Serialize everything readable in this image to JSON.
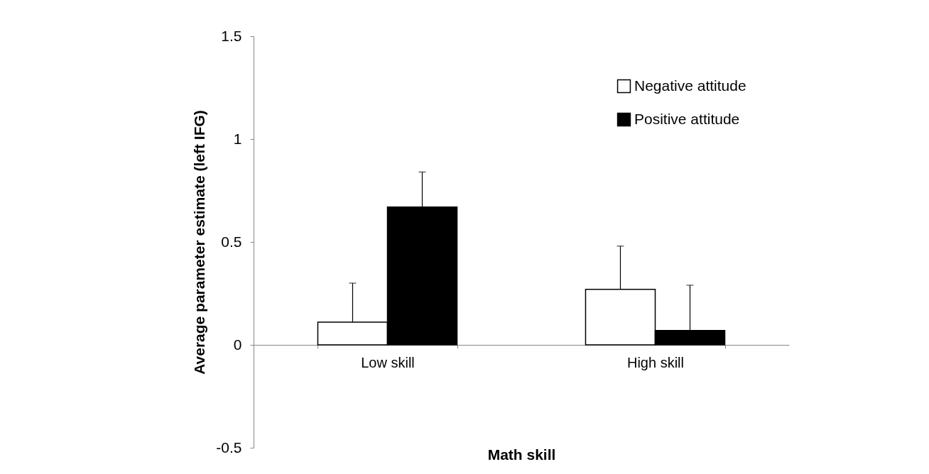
{
  "chart_data": {
    "type": "bar",
    "xlabel": "Math skill",
    "ylabel": "Average parameter estimate (left IFG)",
    "categories": [
      "Low skill",
      "High skill"
    ],
    "series": [
      {
        "name": "Negative attitude",
        "color": "#ffffff",
        "values": [
          0.11,
          0.27
        ],
        "errors": [
          [
            0.11,
            0.3
          ],
          [
            0.27,
            0.48
          ]
        ]
      },
      {
        "name": "Positive attitude",
        "color": "#000000",
        "values": [
          0.67,
          0.07
        ],
        "errors": [
          [
            0.67,
            0.84
          ],
          [
            0.07,
            0.29
          ]
        ]
      }
    ],
    "ylim": [
      -0.5,
      1.5
    ],
    "yticks": [
      -0.5,
      0,
      0.5,
      1,
      1.5
    ],
    "grid": false,
    "legend": "top right"
  }
}
